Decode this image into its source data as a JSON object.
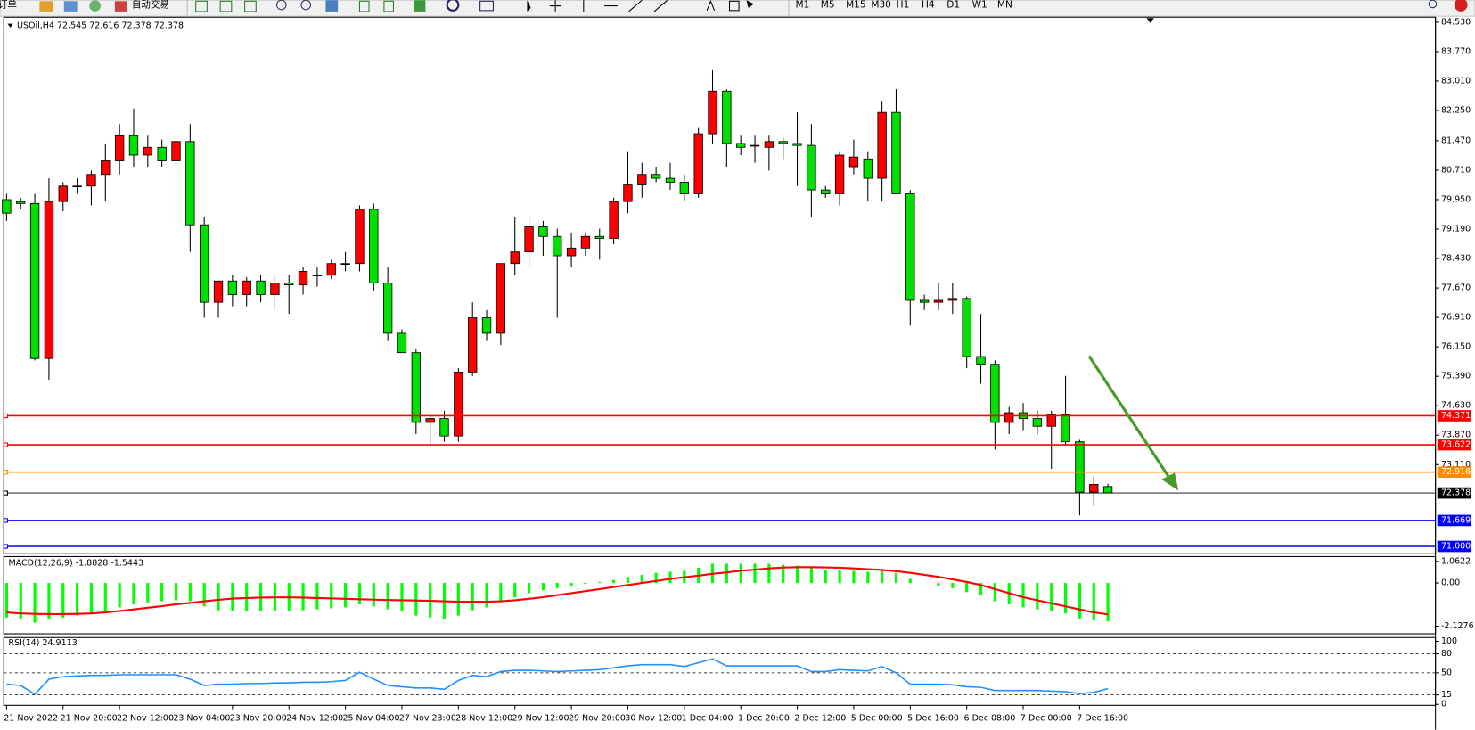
{
  "toolbar": {
    "new_order": "新订单",
    "autotrade": "自动交易",
    "timeframes": [
      "M1",
      "M5",
      "M15",
      "M30",
      "H1",
      "H4",
      "D1",
      "W1",
      "MN"
    ]
  },
  "chart_data": [
    {
      "type": "candlestick",
      "title": "USOil,H4  72.545 72.616 72.378 72.378",
      "up_color": "#ff0000",
      "down_color": "#00e000",
      "categories": [
        "21 Nov 2022",
        null,
        null,
        null,
        "21 Nov 20:00",
        null,
        null,
        null,
        "22 Nov 12:00",
        null,
        null,
        null,
        "23 Nov 04:00",
        null,
        null,
        null,
        "23 Nov 20:00",
        null,
        null,
        null,
        "24 Nov 12:00",
        null,
        null,
        null,
        "25 Nov 04:00",
        null,
        null,
        null,
        "27 Nov 23:00",
        null,
        null,
        null,
        "28 Nov 12:00",
        null,
        null,
        null,
        "29 Nov 12:00",
        null,
        null,
        null,
        "29 Nov 20:00",
        null,
        null,
        null,
        "30 Nov 12:00",
        null,
        null,
        null,
        "1 Dec 04:00",
        null,
        null,
        null,
        "1 Dec 20:00",
        null,
        null,
        null,
        "2 Dec 12:00",
        null,
        null,
        null,
        "5 Dec 00:00",
        null,
        null,
        null,
        "5 Dec 16:00",
        null,
        null,
        null,
        "6 Dec 08:00",
        null,
        null,
        null,
        "7 Dec 00:00",
        null,
        null,
        null,
        "7 Dec 16:00",
        null,
        null
      ],
      "open": [
        79.95,
        79.9,
        79.85,
        75.85,
        79.9,
        80.3,
        80.3,
        80.6,
        80.95,
        81.6,
        81.1,
        81.3,
        80.95,
        81.45,
        79.3,
        77.3,
        77.85,
        77.5,
        77.85,
        77.5,
        77.8,
        77.75,
        78.0,
        78.0,
        78.3,
        78.3,
        79.7,
        77.8,
        76.5,
        76.0,
        74.2,
        74.3,
        73.85,
        75.5,
        76.9,
        76.5,
        78.3,
        78.6,
        79.25,
        79.0,
        78.5,
        78.7,
        79.0,
        78.95,
        79.9,
        80.35,
        80.6,
        80.5,
        80.4,
        80.1,
        81.65,
        82.75,
        81.4,
        81.35,
        81.3,
        81.45,
        81.4,
        81.35,
        80.2,
        80.1,
        80.8,
        81.0,
        80.5,
        82.2,
        80.1,
        77.35,
        77.3,
        77.35,
        77.4,
        75.9,
        75.7,
        74.2,
        74.45,
        74.3,
        74.1,
        74.4,
        73.7,
        72.4,
        72.545
      ],
      "high": [
        80.1,
        80.0,
        80.1,
        80.5,
        80.4,
        80.5,
        80.7,
        81.4,
        81.9,
        82.3,
        81.6,
        81.5,
        81.6,
        81.9,
        79.5,
        77.8,
        78.0,
        77.95,
        78.0,
        78.0,
        78.0,
        78.2,
        78.2,
        78.4,
        78.6,
        79.8,
        79.85,
        78.2,
        76.6,
        76.1,
        74.4,
        74.5,
        75.6,
        77.3,
        77.1,
        78.3,
        79.5,
        79.5,
        79.4,
        79.2,
        79.1,
        79.1,
        79.2,
        80.0,
        81.2,
        80.9,
        80.8,
        80.9,
        80.6,
        81.8,
        83.3,
        82.8,
        81.6,
        81.6,
        81.6,
        81.55,
        82.2,
        81.9,
        80.3,
        81.2,
        81.5,
        81.2,
        82.5,
        82.8,
        80.2,
        77.5,
        77.8,
        77.8,
        77.45,
        77.0,
        75.8,
        74.6,
        74.7,
        74.5,
        74.5,
        75.4,
        73.75,
        72.8,
        72.616
      ],
      "low": [
        79.4,
        79.7,
        75.8,
        75.3,
        79.65,
        80.1,
        79.8,
        79.9,
        80.6,
        80.8,
        80.8,
        80.8,
        80.7,
        78.6,
        76.9,
        76.9,
        77.2,
        77.2,
        77.3,
        77.1,
        77.0,
        77.5,
        77.7,
        77.9,
        78.1,
        78.1,
        77.6,
        76.3,
        76.0,
        73.9,
        73.6,
        73.7,
        73.7,
        75.4,
        76.3,
        76.2,
        78.0,
        78.2,
        78.5,
        76.9,
        78.2,
        78.5,
        78.4,
        78.8,
        79.6,
        80.0,
        80.4,
        80.2,
        79.9,
        80.0,
        81.4,
        80.8,
        81.1,
        80.9,
        80.7,
        81.0,
        80.3,
        79.5,
        80.0,
        79.8,
        80.6,
        79.9,
        79.9,
        80.1,
        76.7,
        77.1,
        77.1,
        77.0,
        75.6,
        75.2,
        73.5,
        73.9,
        74.0,
        73.9,
        73.0,
        73.6,
        71.8,
        72.05,
        72.378
      ],
      "close": [
        79.6,
        79.85,
        75.85,
        79.9,
        80.3,
        80.3,
        80.6,
        80.95,
        81.6,
        81.1,
        81.3,
        80.95,
        81.45,
        79.3,
        77.3,
        77.85,
        77.5,
        77.85,
        77.5,
        77.8,
        77.75,
        78.1,
        78.0,
        78.3,
        78.3,
        79.7,
        77.8,
        76.5,
        76.0,
        74.2,
        74.3,
        73.85,
        75.5,
        76.9,
        76.5,
        78.3,
        78.6,
        79.25,
        79.0,
        78.5,
        78.7,
        79.0,
        78.95,
        79.9,
        80.35,
        80.6,
        80.5,
        80.4,
        80.1,
        81.65,
        82.75,
        81.4,
        81.3,
        81.35,
        81.45,
        81.4,
        81.35,
        80.2,
        80.1,
        81.1,
        81.05,
        80.5,
        82.2,
        80.1,
        77.35,
        77.3,
        77.35,
        77.4,
        75.9,
        75.7,
        74.2,
        74.45,
        74.3,
        74.1,
        74.4,
        73.7,
        72.4,
        72.6,
        72.378
      ],
      "ylim": [
        70.81,
        84.66
      ],
      "yticks": [
        {
          "value": 84.53,
          "label": "84.530"
        },
        {
          "value": 83.77,
          "label": "83.770"
        },
        {
          "value": 83.01,
          "label": "83.010"
        },
        {
          "value": 82.25,
          "label": "82.250"
        },
        {
          "value": 81.47,
          "label": "81.470"
        },
        {
          "value": 80.71,
          "label": "80.710"
        },
        {
          "value": 79.95,
          "label": "79.950"
        },
        {
          "value": 79.19,
          "label": "79.190"
        },
        {
          "value": 78.43,
          "label": "78.430"
        },
        {
          "value": 77.67,
          "label": "77.670"
        },
        {
          "value": 76.91,
          "label": "76.910"
        },
        {
          "value": 76.15,
          "label": "76.150"
        },
        {
          "value": 75.39,
          "label": "75.390"
        },
        {
          "value": 74.63,
          "label": "74.630"
        },
        {
          "value": 73.87,
          "label": "73.870"
        },
        {
          "value": 73.11,
          "label": "73.110"
        }
      ],
      "levels": {
        "values": [
          74.371,
          73.622,
          72.916,
          72.378,
          71.669,
          71.0
        ],
        "value_labels": [
          "74.371",
          "73.622",
          "72.916",
          "72.378",
          "71.669",
          "71.000"
        ],
        "colors": [
          "#ff0000",
          "#ff0000",
          "#ff8c00",
          "#000000",
          "#0000ff",
          "#0000ff"
        ]
      }
    },
    {
      "type": "macd",
      "title": "MACD(12,26,9) -1.8828 -1.5443",
      "hist_color": "#00ff00",
      "signal_color": "#ff0000",
      "values": [
        -1.7,
        -1.75,
        -1.95,
        -1.8,
        -1.7,
        -1.6,
        -1.5,
        -1.4,
        -1.2,
        -1.05,
        -0.95,
        -0.9,
        -0.85,
        -0.9,
        -1.15,
        -1.35,
        -1.4,
        -1.4,
        -1.4,
        -1.4,
        -1.4,
        -1.35,
        -1.3,
        -1.25,
        -1.2,
        -1.05,
        -1.15,
        -1.3,
        -1.4,
        -1.6,
        -1.7,
        -1.75,
        -1.6,
        -1.35,
        -1.2,
        -0.95,
        -0.7,
        -0.5,
        -0.35,
        -0.25,
        -0.15,
        -0.05,
        0.05,
        0.15,
        0.3,
        0.4,
        0.5,
        0.55,
        0.6,
        0.75,
        0.95,
        0.95,
        0.95,
        0.95,
        0.95,
        0.9,
        0.85,
        0.75,
        0.65,
        0.65,
        0.6,
        0.55,
        0.6,
        0.5,
        0.2,
        0.0,
        -0.15,
        -0.25,
        -0.45,
        -0.6,
        -0.9,
        -1.05,
        -1.2,
        -1.3,
        -1.4,
        -1.5,
        -1.75,
        -1.85,
        -1.8828
      ],
      "signal": [
        -1.45,
        -1.5,
        -1.52,
        -1.53,
        -1.53,
        -1.52,
        -1.5,
        -1.45,
        -1.38,
        -1.3,
        -1.22,
        -1.14,
        -1.05,
        -0.98,
        -0.9,
        -0.83,
        -0.77,
        -0.74,
        -0.72,
        -0.71,
        -0.71,
        -0.72,
        -0.74,
        -0.76,
        -0.78,
        -0.8,
        -0.82,
        -0.84,
        -0.85,
        -0.86,
        -0.88,
        -0.9,
        -0.92,
        -0.92,
        -0.92,
        -0.9,
        -0.85,
        -0.78,
        -0.7,
        -0.6,
        -0.5,
        -0.4,
        -0.3,
        -0.2,
        -0.1,
        0.0,
        0.1,
        0.2,
        0.28,
        0.36,
        0.45,
        0.52,
        0.6,
        0.66,
        0.72,
        0.76,
        0.78,
        0.78,
        0.77,
        0.75,
        0.72,
        0.68,
        0.64,
        0.58,
        0.5,
        0.4,
        0.3,
        0.18,
        0.05,
        -0.1,
        -0.3,
        -0.5,
        -0.7,
        -0.85,
        -1.0,
        -1.15,
        -1.3,
        -1.45,
        -1.5443
      ],
      "ylim": [
        -2.5,
        1.3
      ],
      "yticks": [
        1.0622,
        {
          "value": 0,
          "label": "0.00"
        },
        -2.1276
      ]
    },
    {
      "type": "line",
      "title": "RSI(14) 24.9113",
      "color": "#1e90ff",
      "values": [
        32,
        30,
        16,
        40,
        44,
        45,
        46,
        46,
        47,
        47,
        47,
        47,
        47,
        40,
        30,
        32,
        32,
        33,
        33,
        34,
        34,
        35,
        35,
        36,
        38,
        51,
        40,
        30,
        28,
        26,
        26,
        24,
        38,
        46,
        44,
        52,
        54,
        54,
        53,
        52,
        53,
        54,
        55,
        58,
        61,
        63,
        63,
        63,
        60,
        66,
        72,
        61,
        61,
        61,
        61,
        61,
        61,
        52,
        52,
        55,
        54,
        53,
        60,
        50,
        32,
        32,
        32,
        31,
        28,
        27,
        22,
        22,
        22,
        22,
        21,
        20,
        17,
        19,
        24.9113
      ],
      "ylim": [
        0,
        100
      ],
      "yticks": [
        100,
        80,
        50,
        15,
        0
      ]
    }
  ]
}
